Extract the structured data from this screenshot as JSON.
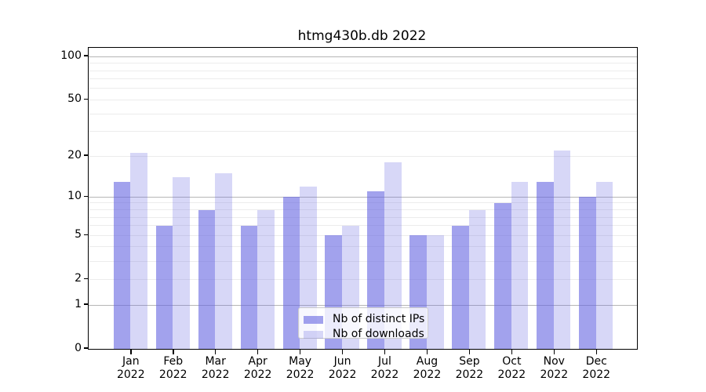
{
  "chart_data": {
    "type": "bar",
    "title": "htmg430b.db 2022",
    "categories": [
      "Jan",
      "Feb",
      "Mar",
      "Apr",
      "May",
      "Jun",
      "Jul",
      "Aug",
      "Sep",
      "Oct",
      "Nov",
      "Dec"
    ],
    "x_tick_year": "2022",
    "series": [
      {
        "name": "Nb of distinct IPs",
        "color": "rgba(100,100,225,0.60)",
        "values": [
          13,
          6,
          8,
          6,
          10,
          5,
          11,
          5,
          6,
          9,
          13,
          10
        ]
      },
      {
        "name": "Nb of downloads",
        "color": "rgba(100,100,225,0.26)",
        "values": [
          21,
          14,
          15,
          8,
          12,
          6,
          18,
          5,
          8,
          13,
          22,
          13
        ]
      }
    ],
    "xlabel": "",
    "ylabel": "",
    "y_scale": "log1p",
    "ylim": [
      0,
      115
    ],
    "y_tick_values": [
      100,
      50,
      20,
      10,
      5,
      2,
      1,
      0
    ],
    "y_major_grid": [
      1,
      10,
      100
    ],
    "y_minor_grid": [
      2,
      3,
      4,
      5,
      6,
      7,
      8,
      9,
      20,
      30,
      40,
      50,
      60,
      70,
      80,
      90
    ],
    "grid_colors": {
      "minor": "#ececec",
      "major": "#b6b6b6"
    },
    "spine_color": "#000000",
    "legend": {
      "position": "lower center"
    }
  }
}
